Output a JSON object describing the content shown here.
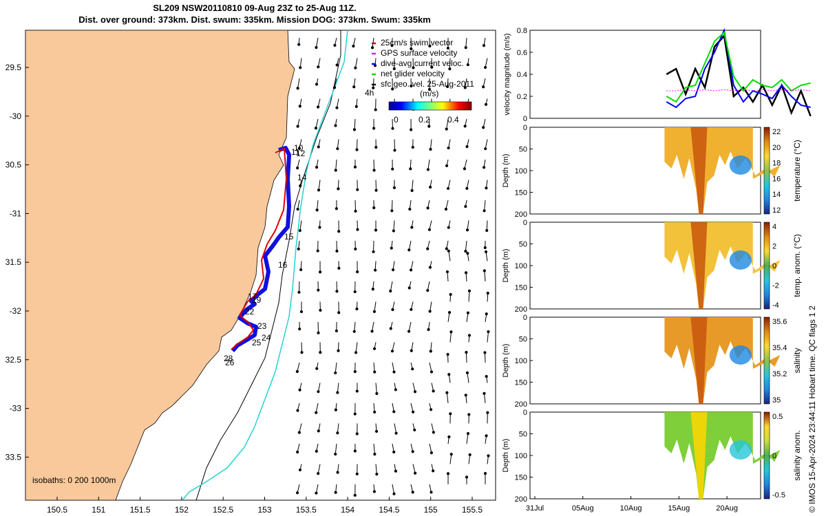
{
  "title_line1": "SL209 NSW20110810 09-Aug 23Z to 25-Aug 11Z.",
  "title_line2": "Dist. over ground: 373km. Dist. swum: 335km. Mission DOG: 373km. Swum: 335km",
  "map": {
    "lon_ticks": [
      "150.5",
      "151",
      "151.5",
      "152",
      "152.5",
      "153",
      "153.5",
      "154",
      "154.5",
      "155",
      "155.5"
    ],
    "lat_ticks": [
      "29.5",
      "-30",
      "30.5",
      "-31",
      "31.5",
      "-32",
      "32.5",
      "-33",
      "33.5"
    ],
    "legend": [
      "25cm/s swim vector",
      "GPS surface velocity",
      "dive-avg current veloc.",
      "net glider velocity",
      "sfc geo. vel. 25-Aug-2011"
    ],
    "legend_colors": [
      "#e00000",
      "#ff00ff",
      "#0000ff",
      "#00e000",
      "#000000"
    ],
    "colorbar_label": "(m/s)",
    "colorbar_ticks": [
      "0",
      "0.2",
      "0.4"
    ],
    "time_marker": "4h",
    "isobath_label": "isobaths: 0   200  1000m",
    "day_labels": [
      "10",
      "11",
      "12",
      "14",
      "15",
      "16",
      "17",
      "19",
      "22",
      "23",
      "24",
      "25",
      "28",
      "26"
    ]
  },
  "chart_data": [
    {
      "type": "line",
      "title": "",
      "ylabel": "velocity magnitude (m/s)",
      "ylim": [
        0,
        0.8
      ],
      "yticks": [
        "0",
        "0.2",
        "0.4",
        "0.6",
        "0.8"
      ],
      "x": [
        10,
        11,
        12,
        13,
        14,
        15,
        16,
        17,
        18,
        19,
        20,
        21,
        22,
        23,
        24,
        25
      ],
      "series": [
        {
          "name": "sfc geo. vel.",
          "color": "#000000",
          "values": [
            0.4,
            0.45,
            0.22,
            0.45,
            0.28,
            0.65,
            0.75,
            0.2,
            0.28,
            0.15,
            0.3,
            0.12,
            0.3,
            0.05,
            0.25,
            0.02
          ]
        },
        {
          "name": "dive-avg current",
          "color": "#0000ff",
          "values": [
            0.15,
            0.1,
            0.18,
            0.2,
            0.45,
            0.6,
            0.8,
            0.3,
            0.15,
            0.25,
            0.22,
            0.18,
            0.3,
            0.2,
            0.12,
            0.1
          ]
        },
        {
          "name": "net glider",
          "color": "#00dd00",
          "values": [
            0.2,
            0.15,
            0.28,
            0.3,
            0.5,
            0.7,
            0.78,
            0.38,
            0.25,
            0.35,
            0.3,
            0.28,
            0.35,
            0.25,
            0.3,
            0.32
          ]
        },
        {
          "name": "GPS surface",
          "color": "#ff00ff",
          "values": [
            0.25,
            0.25,
            0.26,
            0.25,
            0.26,
            0.25,
            0.26,
            0.25,
            0.26,
            0.25,
            0.26,
            0.25,
            0.26,
            0.25,
            0.26,
            0.25
          ]
        }
      ]
    },
    {
      "type": "heatmap",
      "ylabel": "Depth (m)",
      "yticks": [
        "0",
        "50",
        "100",
        "150",
        "200"
      ],
      "colorbar_label": "temperature (°C)",
      "colorbar_ticks": [
        "22",
        "20",
        "18",
        "16",
        "14",
        "12"
      ]
    },
    {
      "type": "heatmap",
      "ylabel": "Depth (m)",
      "yticks": [
        "0",
        "50",
        "100",
        "150",
        "200"
      ],
      "colorbar_label": "temp. anom. (°C)",
      "colorbar_ticks": [
        "4",
        "2",
        "0",
        "-2",
        "-4"
      ]
    },
    {
      "type": "heatmap",
      "ylabel": "Depth (m)",
      "yticks": [
        "0",
        "50",
        "100",
        "150",
        "200"
      ],
      "colorbar_label": "salinity",
      "colorbar_ticks": [
        "35.6",
        "35.4",
        "35.2",
        "35"
      ]
    },
    {
      "type": "heatmap",
      "ylabel": "Depth (m)",
      "yticks": [
        "0",
        "50",
        "100",
        "150",
        "200"
      ],
      "colorbar_label": "salinity anom.",
      "colorbar_ticks": [
        "0.5",
        "0",
        "-0.5"
      ],
      "xticks": [
        "31Jul",
        "05Aug",
        "10Aug",
        "15Aug",
        "20Aug"
      ]
    }
  ],
  "side_note": "© IMOS 15-Apr-2024 23:44:11 Hobart time. QC flags 1  2"
}
